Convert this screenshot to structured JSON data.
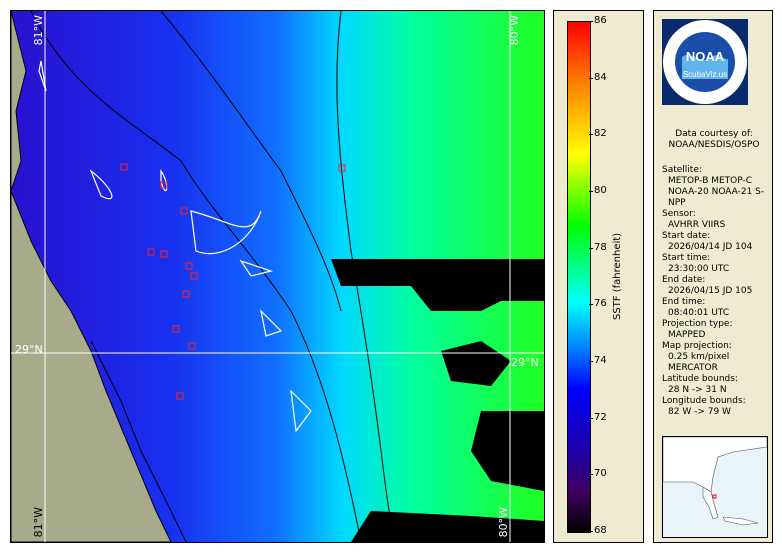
{
  "map": {
    "grid_labels": {
      "top_left_lon": "81°W",
      "top_right_lon": "80°W",
      "bottom_left_lon": "81°W",
      "bottom_right_lon": "80°W",
      "left_lat": "29°N",
      "right_lat": "29°N"
    }
  },
  "colorbar": {
    "label": "SSTF (fahrenheit)",
    "ticks": [
      "86",
      "84",
      "82",
      "80",
      "78",
      "76",
      "74",
      "72",
      "70",
      "68"
    ],
    "min": 68,
    "max": 86
  },
  "info": {
    "logo_text": "NOAA",
    "logo_sub": "ScubaViz.us",
    "credit_line1": "Data courtesy of:",
    "credit_line2": "NOAA/NESDIS/OSPO",
    "fields": [
      {
        "key": "Satellite:",
        "value": "METOP-B METOP-C NOAA-20 NOAA-21 S-NPP"
      },
      {
        "key": "Sensor:",
        "value": "AVHRR VIIRS"
      },
      {
        "key": "Start date:",
        "value": "2026/04/14 JD 104"
      },
      {
        "key": "Start time:",
        "value": "23:30:00 UTC"
      },
      {
        "key": "End date:",
        "value": "2026/04/15 JD 105"
      },
      {
        "key": "End time:",
        "value": "08:40:01 UTC"
      },
      {
        "key": "Projection type:",
        "value": "MAPPED"
      },
      {
        "key": "Map projection:",
        "value": "0.25 km/pixel MERCATOR"
      },
      {
        "key": "Latitude bounds:",
        "value": "28 N -> 31 N"
      },
      {
        "key": "Longitude bounds:",
        "value": "82 W -> 79 W"
      }
    ]
  },
  "colors": {
    "land": "#a7ab8a",
    "cold_water": "#1a20e6",
    "warm_water": "#00ff3a",
    "cloud": "#000000",
    "panel": "#efebd0"
  }
}
